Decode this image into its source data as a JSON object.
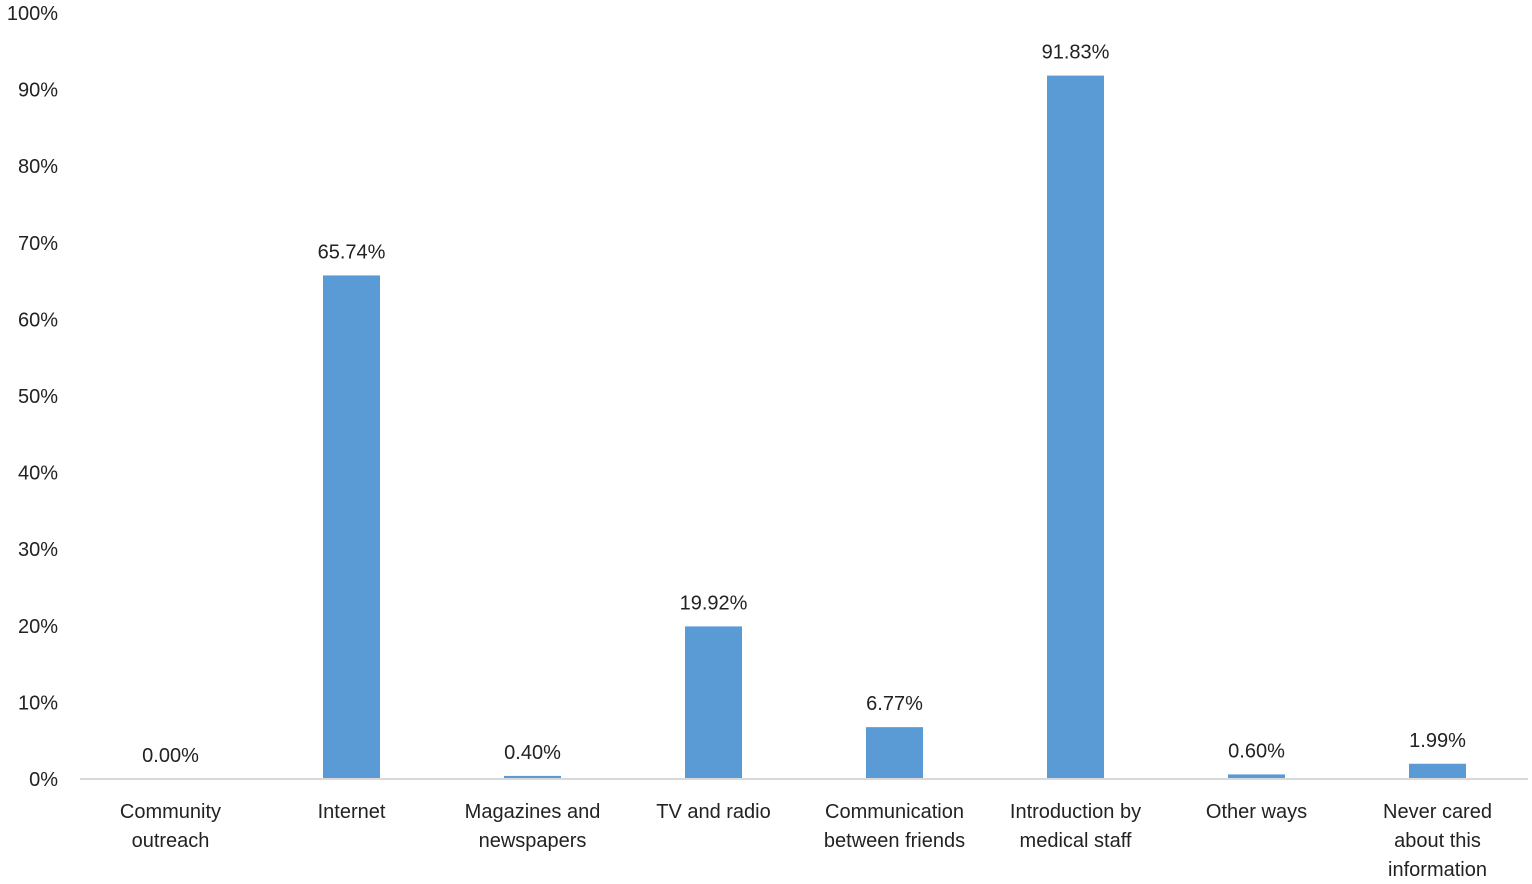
{
  "chart_data": {
    "type": "bar",
    "title": "",
    "xlabel": "",
    "ylabel": "",
    "ylim": [
      0,
      100
    ],
    "y_ticks": [
      0,
      10,
      20,
      30,
      40,
      50,
      60,
      70,
      80,
      90,
      100
    ],
    "y_tick_labels": [
      "0%",
      "10%",
      "20%",
      "30%",
      "40%",
      "50%",
      "60%",
      "70%",
      "80%",
      "90%",
      "100%"
    ],
    "grid": false,
    "legend": "none",
    "bar_color": "#5b9bd5",
    "categories": [
      [
        "Community",
        "outreach"
      ],
      [
        "Internet"
      ],
      [
        "Magazines and",
        "newspapers"
      ],
      [
        "TV and radio"
      ],
      [
        "Communication",
        "between friends"
      ],
      [
        "Introduction by",
        "medical staff"
      ],
      [
        "Other ways"
      ],
      [
        "Never cared",
        "about this",
        "information"
      ]
    ],
    "values": [
      0.0,
      65.74,
      0.4,
      19.92,
      6.77,
      91.83,
      0.6,
      1.99
    ],
    "data_labels": [
      "0.00%",
      "65.74%",
      "0.40%",
      "19.92%",
      "6.77%",
      "91.83%",
      "0.60%",
      "1.99%"
    ]
  }
}
